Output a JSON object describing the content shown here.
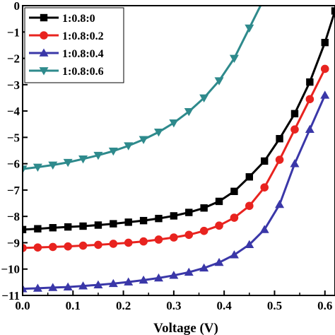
{
  "chart_data": {
    "type": "line",
    "title": "",
    "xlabel": "Voltage (V)",
    "ylabel": "",
    "xlim": [
      0.0,
      0.62
    ],
    "ylim": [
      -11,
      0
    ],
    "x_ticks": [
      0.0,
      0.1,
      0.2,
      0.3,
      0.4,
      0.5,
      0.6
    ],
    "x_tick_labels": [
      "0.0",
      "0.1",
      "0.2",
      "0.3",
      "0.4",
      "0.5",
      "0.6"
    ],
    "y_ticks": [
      0,
      -1,
      -2,
      -3,
      -4,
      -5,
      -6,
      -7,
      -8,
      -9,
      -10,
      -11
    ],
    "y_tick_labels": [
      "0",
      "−1",
      "−2",
      "−3",
      "−4",
      "−5",
      "−6",
      "−7",
      "−8",
      "−9",
      "−10",
      "−11"
    ],
    "grid": false,
    "legend_position": "top-left",
    "series": [
      {
        "name": "1:0.8:0",
        "color": "#000000",
        "marker": "square",
        "x": [
          0.0,
          0.03,
          0.06,
          0.09,
          0.12,
          0.15,
          0.18,
          0.21,
          0.24,
          0.27,
          0.3,
          0.33,
          0.36,
          0.39,
          0.42,
          0.45,
          0.48,
          0.51,
          0.54,
          0.57,
          0.6,
          0.62
        ],
        "y": [
          -8.5,
          -8.47,
          -8.43,
          -8.4,
          -8.37,
          -8.33,
          -8.28,
          -8.22,
          -8.16,
          -8.08,
          -7.98,
          -7.85,
          -7.68,
          -7.43,
          -7.05,
          -6.5,
          -5.9,
          -5.05,
          -4.1,
          -2.9,
          -1.4,
          -0.2
        ]
      },
      {
        "name": "1:0.8:0.2",
        "color": "#e8231f",
        "marker": "circle",
        "x": [
          0.0,
          0.03,
          0.06,
          0.09,
          0.12,
          0.15,
          0.18,
          0.21,
          0.24,
          0.27,
          0.3,
          0.33,
          0.36,
          0.39,
          0.42,
          0.45,
          0.48,
          0.51,
          0.54,
          0.57,
          0.6
        ],
        "y": [
          -9.2,
          -9.18,
          -9.16,
          -9.14,
          -9.11,
          -9.08,
          -9.04,
          -9.0,
          -8.95,
          -8.88,
          -8.8,
          -8.7,
          -8.55,
          -8.35,
          -8.05,
          -7.6,
          -6.9,
          -5.85,
          -4.7,
          -3.55,
          -2.4
        ]
      },
      {
        "name": "1:0.8:0.4",
        "color": "#3a37a8",
        "marker": "triangle-up",
        "x": [
          0.0,
          0.03,
          0.06,
          0.09,
          0.12,
          0.15,
          0.18,
          0.21,
          0.24,
          0.27,
          0.3,
          0.33,
          0.36,
          0.39,
          0.42,
          0.45,
          0.48,
          0.51,
          0.54,
          0.57,
          0.6
        ],
        "y": [
          -10.75,
          -10.73,
          -10.7,
          -10.68,
          -10.64,
          -10.6,
          -10.55,
          -10.49,
          -10.42,
          -10.34,
          -10.24,
          -10.12,
          -9.96,
          -9.75,
          -9.46,
          -9.07,
          -8.5,
          -7.55,
          -6.0,
          -4.7,
          -3.4
        ]
      },
      {
        "name": "1:0.8:0.6",
        "color": "#2e8a8c",
        "marker": "triangle-down",
        "x": [
          0.0,
          0.03,
          0.06,
          0.09,
          0.12,
          0.15,
          0.18,
          0.21,
          0.24,
          0.27,
          0.3,
          0.33,
          0.36,
          0.39,
          0.42,
          0.45,
          0.48
        ],
        "y": [
          -6.2,
          -6.13,
          -6.05,
          -5.95,
          -5.82,
          -5.68,
          -5.52,
          -5.32,
          -5.08,
          -4.8,
          -4.45,
          -4.02,
          -3.5,
          -2.85,
          -2.0,
          -0.85,
          0.3
        ]
      }
    ]
  }
}
